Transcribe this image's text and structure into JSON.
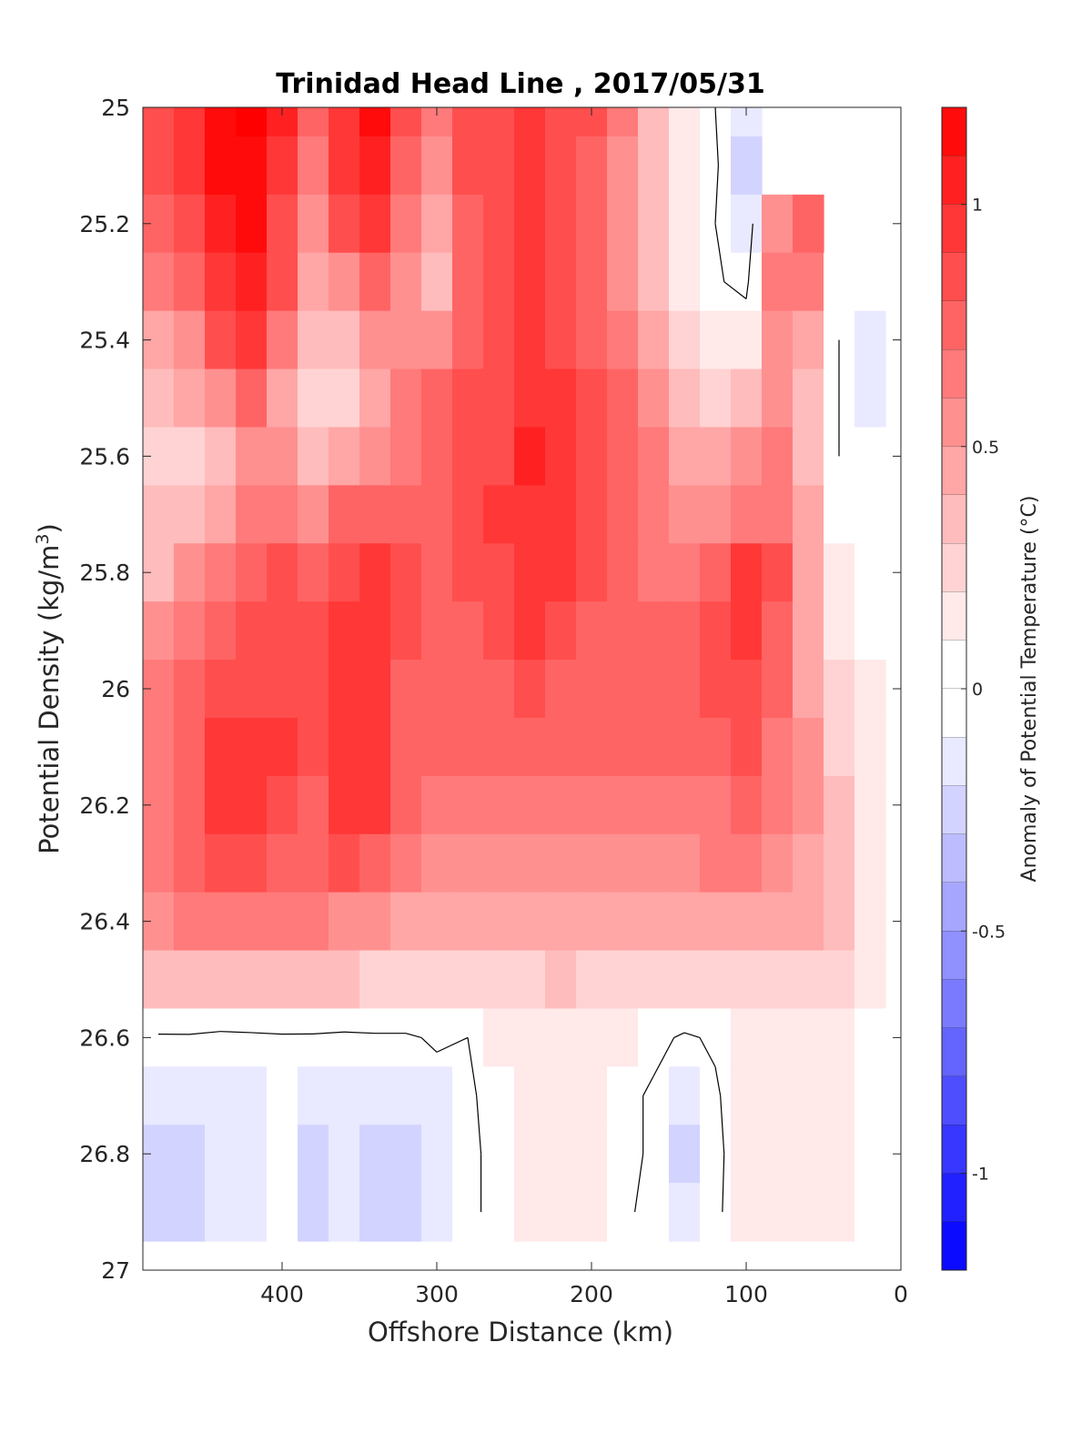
{
  "chart_data": {
    "type": "heatmap",
    "subtype": "filled-contour",
    "title": "Trinidad Head Line , 2017/05/31",
    "xlabel": "Offshore Distance (km)",
    "ylabel": "Potential Density (kg/m",
    "ylabel_sup": "3",
    "ylabel_close": ")",
    "xlim": [
      490,
      0
    ],
    "ylim": [
      25,
      27
    ],
    "x_reversed": true,
    "y_reversed": true,
    "xticks": [
      400,
      300,
      200,
      100,
      0
    ],
    "xtick_labels": [
      "400",
      "300",
      "200",
      "100",
      "0"
    ],
    "yticks": [
      25,
      25.2,
      25.4,
      25.6,
      25.8,
      26,
      26.2,
      26.4,
      26.6,
      26.8,
      27
    ],
    "ytick_labels": [
      "25",
      "25.2",
      "25.4",
      "25.6",
      "25.8",
      "26",
      "26.2",
      "26.4",
      "26.6",
      "26.8",
      "27"
    ],
    "colorbar": {
      "label": "Anomaly of Potential Temperature (°C)",
      "range": [
        -1.2,
        1.2
      ],
      "level_step": 0.1,
      "ticks": [
        1,
        0.5,
        0,
        -0.5,
        -1
      ],
      "tick_labels": [
        "1",
        "0.5",
        "0",
        "-0.5",
        "-1"
      ],
      "colormap": "blue-white-red",
      "low_color": "#0000ff",
      "mid_color": "#ffffff",
      "high_color": "#ff0000"
    },
    "zero_contour": true,
    "x_grid": [
      480,
      460,
      440,
      420,
      400,
      380,
      360,
      340,
      320,
      300,
      280,
      260,
      240,
      220,
      200,
      180,
      160,
      140,
      120,
      100,
      80,
      60,
      40,
      20
    ],
    "y_grid": [
      25,
      25.1,
      25.2,
      25.3,
      25.4,
      25.5,
      25.6,
      25.7,
      25.8,
      25.9,
      26,
      26.1,
      26.2,
      26.3,
      26.4,
      26.5,
      26.6,
      26.7,
      26.8,
      26.9
    ],
    "z": [
      [
        0.85,
        0.92,
        1.15,
        1.2,
        1.0,
        0.7,
        0.9,
        1.1,
        0.8,
        0.65,
        0.8,
        0.82,
        0.86,
        0.84,
        0.78,
        0.6,
        0.35,
        0.15,
        0.0,
        -0.12,
        null,
        null,
        null,
        null
      ],
      [
        0.8,
        0.88,
        1.1,
        1.15,
        0.95,
        0.62,
        0.88,
        1.05,
        0.75,
        0.55,
        0.82,
        0.84,
        0.86,
        0.82,
        0.74,
        0.55,
        0.3,
        0.12,
        0.02,
        -0.18,
        null,
        null,
        null,
        null
      ],
      [
        0.75,
        0.85,
        1.05,
        1.1,
        0.85,
        0.55,
        0.78,
        0.9,
        0.65,
        0.42,
        0.75,
        0.82,
        0.87,
        0.8,
        0.7,
        0.5,
        0.28,
        0.1,
        0.0,
        -0.15,
        0.55,
        0.7,
        null,
        null
      ],
      [
        0.6,
        0.72,
        0.95,
        1.05,
        0.78,
        0.38,
        0.55,
        0.75,
        0.5,
        0.35,
        0.72,
        0.82,
        0.88,
        0.82,
        0.72,
        0.55,
        0.35,
        0.12,
        0.02,
        -0.05,
        0.65,
        0.6,
        0.0,
        null
      ],
      [
        0.4,
        0.52,
        0.82,
        0.95,
        0.6,
        0.28,
        0.35,
        0.55,
        0.55,
        0.55,
        0.72,
        0.82,
        0.9,
        0.85,
        0.75,
        0.6,
        0.45,
        0.25,
        0.1,
        0.12,
        0.55,
        0.45,
        0.0,
        -0.08
      ],
      [
        0.3,
        0.38,
        0.55,
        0.72,
        0.45,
        0.22,
        0.25,
        0.4,
        0.6,
        0.72,
        0.78,
        0.85,
        0.95,
        0.88,
        0.78,
        0.66,
        0.55,
        0.35,
        0.22,
        0.3,
        0.55,
        0.35,
        0.0,
        -0.1
      ],
      [
        0.2,
        0.18,
        0.35,
        0.5,
        0.5,
        0.3,
        0.38,
        0.55,
        0.65,
        0.75,
        0.78,
        0.85,
        0.96,
        0.9,
        0.8,
        0.68,
        0.6,
        0.45,
        0.38,
        0.5,
        0.6,
        0.3,
        0.0,
        -0.05
      ],
      [
        0.28,
        0.3,
        0.45,
        0.6,
        0.62,
        0.55,
        0.7,
        0.75,
        0.72,
        0.75,
        0.8,
        0.86,
        0.95,
        0.88,
        0.78,
        0.68,
        0.62,
        0.55,
        0.55,
        0.65,
        0.65,
        0.4,
        0.05,
        null
      ],
      [
        0.35,
        0.5,
        0.62,
        0.75,
        0.8,
        0.72,
        0.85,
        0.88,
        0.76,
        0.72,
        0.78,
        0.85,
        0.92,
        0.86,
        0.76,
        0.66,
        0.65,
        0.65,
        0.75,
        0.88,
        0.82,
        0.45,
        0.1,
        0.0
      ],
      [
        0.5,
        0.62,
        0.72,
        0.8,
        0.85,
        0.82,
        0.92,
        0.9,
        0.78,
        0.72,
        0.75,
        0.8,
        0.88,
        0.83,
        0.75,
        0.68,
        0.68,
        0.72,
        0.8,
        0.9,
        0.75,
        0.45,
        0.15,
        0.05
      ],
      [
        0.6,
        0.72,
        0.82,
        0.85,
        0.85,
        0.85,
        0.95,
        0.92,
        0.75,
        0.7,
        0.72,
        0.74,
        0.76,
        0.75,
        0.72,
        0.7,
        0.7,
        0.72,
        0.78,
        0.85,
        0.68,
        0.45,
        0.2,
        0.08
      ],
      [
        0.65,
        0.75,
        0.92,
        0.95,
        0.88,
        0.8,
        0.95,
        0.92,
        0.72,
        0.66,
        0.68,
        0.7,
        0.7,
        0.7,
        0.7,
        0.68,
        0.7,
        0.72,
        0.75,
        0.85,
        0.65,
        0.5,
        0.25,
        0.12
      ],
      [
        0.65,
        0.75,
        0.95,
        0.95,
        0.85,
        0.75,
        0.95,
        0.9,
        0.68,
        0.62,
        0.62,
        0.64,
        0.65,
        0.64,
        0.64,
        0.6,
        0.62,
        0.6,
        0.65,
        0.72,
        0.62,
        0.5,
        0.3,
        0.15
      ],
      [
        0.6,
        0.72,
        0.82,
        0.82,
        0.72,
        0.7,
        0.8,
        0.72,
        0.6,
        0.55,
        0.52,
        0.53,
        0.55,
        0.54,
        0.55,
        0.52,
        0.55,
        0.52,
        0.58,
        0.6,
        0.52,
        0.45,
        0.3,
        0.15
      ],
      [
        0.55,
        0.62,
        0.62,
        0.62,
        0.6,
        0.58,
        0.55,
        0.48,
        0.45,
        0.42,
        0.4,
        0.4,
        0.42,
        0.42,
        0.42,
        0.4,
        0.42,
        0.4,
        0.45,
        0.42,
        0.4,
        0.36,
        0.28,
        0.15
      ],
      [
        0.32,
        0.34,
        0.34,
        0.32,
        0.32,
        0.3,
        0.28,
        0.25,
        0.25,
        0.22,
        0.22,
        0.24,
        0.25,
        0.26,
        0.25,
        0.24,
        0.24,
        0.22,
        0.22,
        0.2,
        0.18,
        0.2,
        0.16,
        0.1
      ],
      [
        -0.02,
        -0.02,
        -0.04,
        -0.03,
        -0.02,
        -0.02,
        -0.03,
        -0.02,
        -0.02,
        0.02,
        0.0,
        0.08,
        0.12,
        0.14,
        0.12,
        0.06,
        0.04,
        -0.02,
        0.02,
        0.12,
        0.1,
        0.1,
        0.08,
        0.05
      ],
      [
        -0.12,
        -0.12,
        -0.13,
        -0.08,
        -0.02,
        -0.1,
        -0.12,
        -0.1,
        -0.08,
        -0.06,
        -0.02,
        0.05,
        0.12,
        0.1,
        0.1,
        0.04,
        -0.02,
        -0.08,
        -0.02,
        0.1,
        0.15,
        0.12,
        0.1,
        0.05
      ],
      [
        -0.2,
        -0.2,
        -0.12,
        -0.08,
        -0.02,
        -0.2,
        -0.14,
        -0.2,
        -0.18,
        -0.08,
        -0.03,
        0.04,
        0.12,
        0.1,
        0.1,
        0.04,
        -0.02,
        -0.2,
        -0.04,
        0.1,
        0.15,
        0.12,
        0.14,
        0.05
      ],
      [
        -0.18,
        -0.18,
        -0.1,
        -0.06,
        -0.02,
        -0.16,
        -0.12,
        -0.18,
        -0.16,
        -0.06,
        -0.03,
        0.04,
        0.1,
        0.08,
        0.08,
        0.02,
        -0.03,
        -0.15,
        -0.03,
        0.1,
        0.14,
        0.12,
        0.1,
        0.05
      ]
    ]
  }
}
